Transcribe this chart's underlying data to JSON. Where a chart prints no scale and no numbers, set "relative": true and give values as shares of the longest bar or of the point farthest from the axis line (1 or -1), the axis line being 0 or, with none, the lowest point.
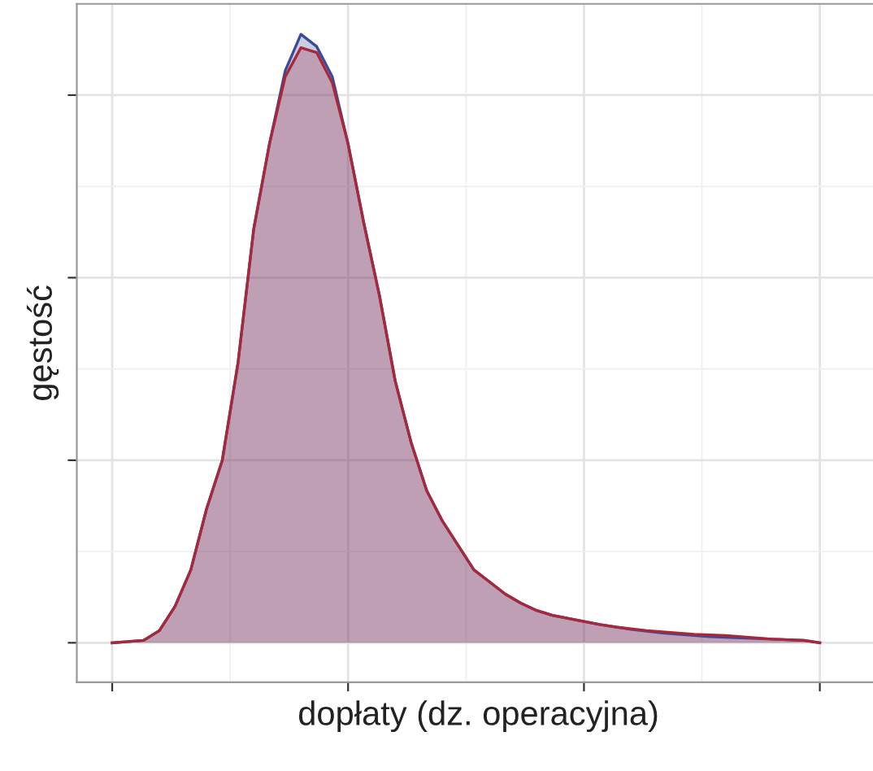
{
  "chart_data": {
    "type": "area",
    "relative": true,
    "xlabel": "dopłaty (dz. operacyjna)",
    "ylabel": "gęstość",
    "categories": [
      null,
      null,
      null,
      null,
      null,
      null,
      null,
      null,
      null,
      null,
      null,
      null,
      null,
      null,
      null,
      null,
      null,
      null,
      null,
      null,
      null,
      null,
      null,
      null,
      null,
      null,
      null,
      null,
      null,
      null,
      null,
      null,
      null,
      null,
      null,
      null,
      null,
      null,
      null,
      null,
      null,
      null,
      null,
      null,
      null,
      null
    ],
    "series": [
      {
        "color": "#3a4a9c",
        "values": [
          0,
          0.002,
          0.004,
          0.02,
          0.06,
          0.12,
          0.22,
          0.3,
          0.46,
          0.68,
          0.82,
          0.94,
          1.0,
          0.98,
          0.93,
          0.82,
          0.69,
          0.57,
          0.43,
          0.33,
          0.25,
          0.2,
          0.16,
          0.12,
          0.1,
          0.08,
          0.065,
          0.053,
          0.045,
          0.04,
          0.035,
          0.03,
          0.026,
          0.022,
          0.019,
          0.016,
          0.014,
          0.012,
          0.01,
          0.009,
          0.008,
          0.007,
          0.006,
          0.005,
          0.004,
          0
        ]
      },
      {
        "color": "#a8283a",
        "values": [
          0,
          0.002,
          0.004,
          0.02,
          0.06,
          0.12,
          0.22,
          0.3,
          0.46,
          0.68,
          0.82,
          0.93,
          0.978,
          0.97,
          0.92,
          0.82,
          0.69,
          0.57,
          0.43,
          0.33,
          0.25,
          0.2,
          0.16,
          0.12,
          0.1,
          0.08,
          0.065,
          0.053,
          0.045,
          0.04,
          0.035,
          0.03,
          0.026,
          0.023,
          0.02,
          0.018,
          0.016,
          0.014,
          0.013,
          0.012,
          0.01,
          0.008,
          0.006,
          0.005,
          0.004,
          0
        ]
      }
    ],
    "grid": true,
    "tick_labels": false,
    "legend": false
  }
}
